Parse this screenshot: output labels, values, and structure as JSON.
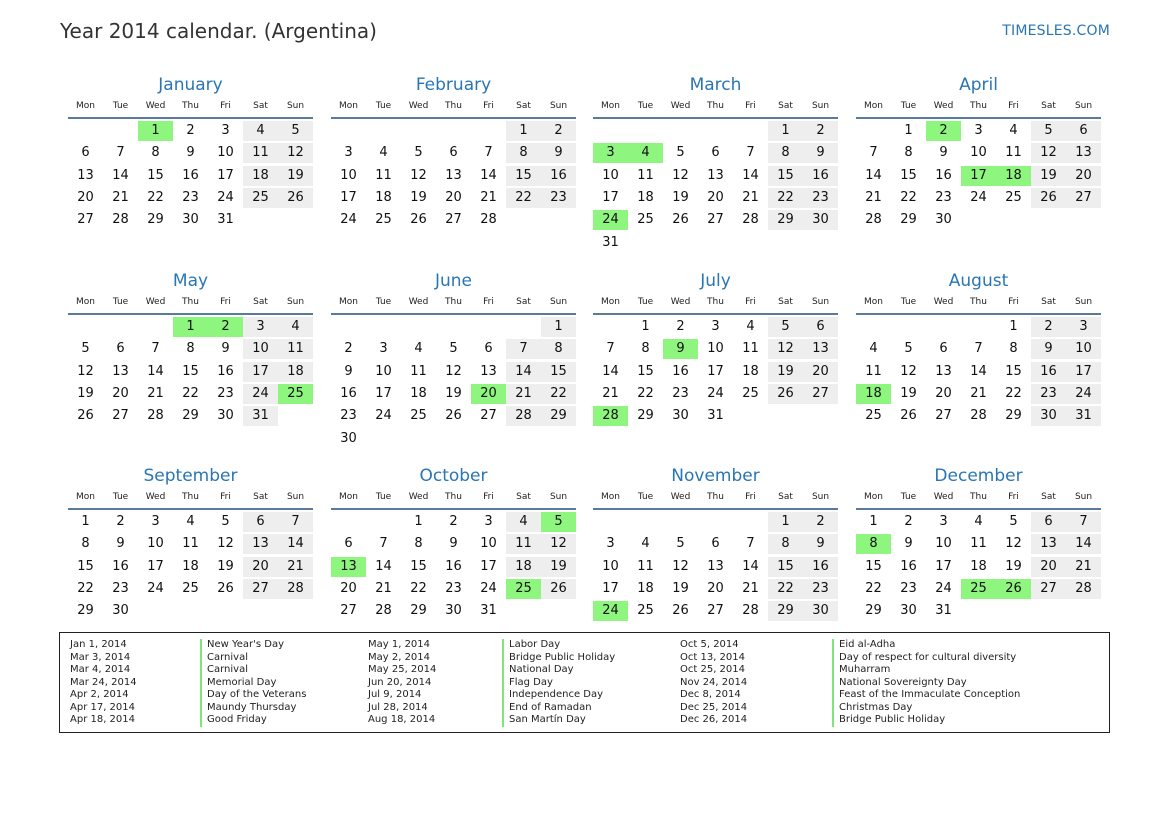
{
  "header": {
    "title": "Year 2014 calendar. (Argentina)",
    "brand": "TIMESLES.COM"
  },
  "weekday_labels": [
    "Mon",
    "Tue",
    "Wed",
    "Thu",
    "Fri",
    "Sat",
    "Sun"
  ],
  "months": [
    {
      "name": "January",
      "start_weekday": 2,
      "days": 31,
      "holidays": [
        1
      ]
    },
    {
      "name": "February",
      "start_weekday": 5,
      "days": 28,
      "holidays": []
    },
    {
      "name": "March",
      "start_weekday": 5,
      "days": 31,
      "holidays": [
        3,
        4,
        24
      ]
    },
    {
      "name": "April",
      "start_weekday": 1,
      "days": 30,
      "holidays": [
        2,
        17,
        18
      ]
    },
    {
      "name": "May",
      "start_weekday": 3,
      "days": 31,
      "holidays": [
        1,
        2,
        25
      ]
    },
    {
      "name": "June",
      "start_weekday": 6,
      "days": 30,
      "holidays": [
        20
      ]
    },
    {
      "name": "July",
      "start_weekday": 1,
      "days": 31,
      "holidays": [
        9,
        28
      ]
    },
    {
      "name": "August",
      "start_weekday": 4,
      "days": 31,
      "holidays": [
        18
      ]
    },
    {
      "name": "September",
      "start_weekday": 0,
      "days": 30,
      "holidays": []
    },
    {
      "name": "October",
      "start_weekday": 2,
      "days": 31,
      "holidays": [
        5,
        13,
        25
      ]
    },
    {
      "name": "November",
      "start_weekday": 5,
      "days": 30,
      "holidays": [
        24
      ]
    },
    {
      "name": "December",
      "start_weekday": 0,
      "days": 31,
      "holidays": [
        8,
        25,
        26
      ]
    }
  ],
  "holiday_list": [
    {
      "date": "Jan 1, 2014",
      "name": "New Year's Day"
    },
    {
      "date": "Mar 3, 2014",
      "name": "Carnival"
    },
    {
      "date": "Mar 4, 2014",
      "name": "Carnival"
    },
    {
      "date": "Mar 24, 2014",
      "name": "Memorial Day"
    },
    {
      "date": "Apr 2, 2014",
      "name": "Day of the Veterans"
    },
    {
      "date": "Apr 17, 2014",
      "name": "Maundy Thursday"
    },
    {
      "date": "Apr 18, 2014",
      "name": "Good Friday"
    },
    {
      "date": "May 1, 2014",
      "name": "Labor Day"
    },
    {
      "date": "May 2, 2014",
      "name": "Bridge Public Holiday"
    },
    {
      "date": "May 25, 2014",
      "name": "National Day"
    },
    {
      "date": "Jun 20, 2014",
      "name": "Flag Day"
    },
    {
      "date": "Jul 9, 2014",
      "name": "Independence Day"
    },
    {
      "date": "Jul 28, 2014",
      "name": "End of Ramadan"
    },
    {
      "date": "Aug 18, 2014",
      "name": "San Martín Day"
    },
    {
      "date": "Oct 5, 2014",
      "name": "Eid al-Adha"
    },
    {
      "date": "Oct 13, 2014",
      "name": "Day of respect for cultural diversity"
    },
    {
      "date": "Oct 25, 2014",
      "name": "Muharram"
    },
    {
      "date": "Nov 24, 2014",
      "name": "National Sovereignty Day"
    },
    {
      "date": "Dec 8, 2014",
      "name": "Feast of the Immaculate Conception"
    },
    {
      "date": "Dec 25, 2014",
      "name": "Christmas Day"
    },
    {
      "date": "Dec 26, 2014",
      "name": "Bridge Public Holiday"
    }
  ],
  "colors": {
    "accent": "#2a75b3",
    "holiday": "#8ef57e",
    "weekend": "#eeeeee",
    "rule": "#5a7a9c"
  }
}
